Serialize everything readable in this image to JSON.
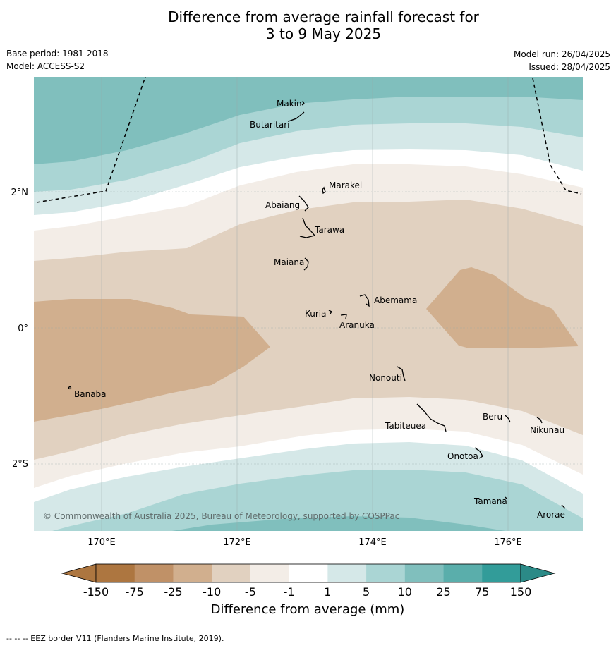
{
  "title_line1": "Difference from average rainfall forecast for",
  "title_line2": "3 to 9 May 2025",
  "base_period": "Base period: 1981-2018",
  "model": "Model: ACCESS-S2",
  "model_run": "Model run: 26/04/2025",
  "issued": "Issued: 28/04/2025",
  "copyright": "© Commonwealth of Australia 2025, Bureau of Meteorology, supported by COSPPac",
  "lat_labels": [
    "2°N",
    "0°",
    "2°S"
  ],
  "lon_labels": [
    "170°E",
    "172°E",
    "174°E",
    "176°E"
  ],
  "places": [
    "Makin",
    "Butaritari",
    "Marakei",
    "Abaiang",
    "Tarawa",
    "Maiana",
    "Abemama",
    "Kuria",
    "Aranuka",
    "Banaba",
    "Nonouti",
    "Beru",
    "Tabiteuea",
    "Nikunau",
    "Onotoa",
    "Tamana",
    "Arorae"
  ],
  "colorbar": {
    "label": "Difference from average (mm)",
    "ticks": [
      "-150",
      "-75",
      "-25",
      "-10",
      "-5",
      "-1",
      "1",
      "5",
      "10",
      "25",
      "75",
      "150"
    ],
    "colors": [
      "#ad7640",
      "#c09167",
      "#d1af8e",
      "#e1d1c0",
      "#f3ede7",
      "#ffffff",
      "#d5e8e8",
      "#aad5d4",
      "#80bfbd",
      "#5aaeab",
      "#329c99",
      "#2b8a87"
    ]
  },
  "footer": "--  --  -- EEZ border V11 (Flanders Marine Institute, 2019)."
}
